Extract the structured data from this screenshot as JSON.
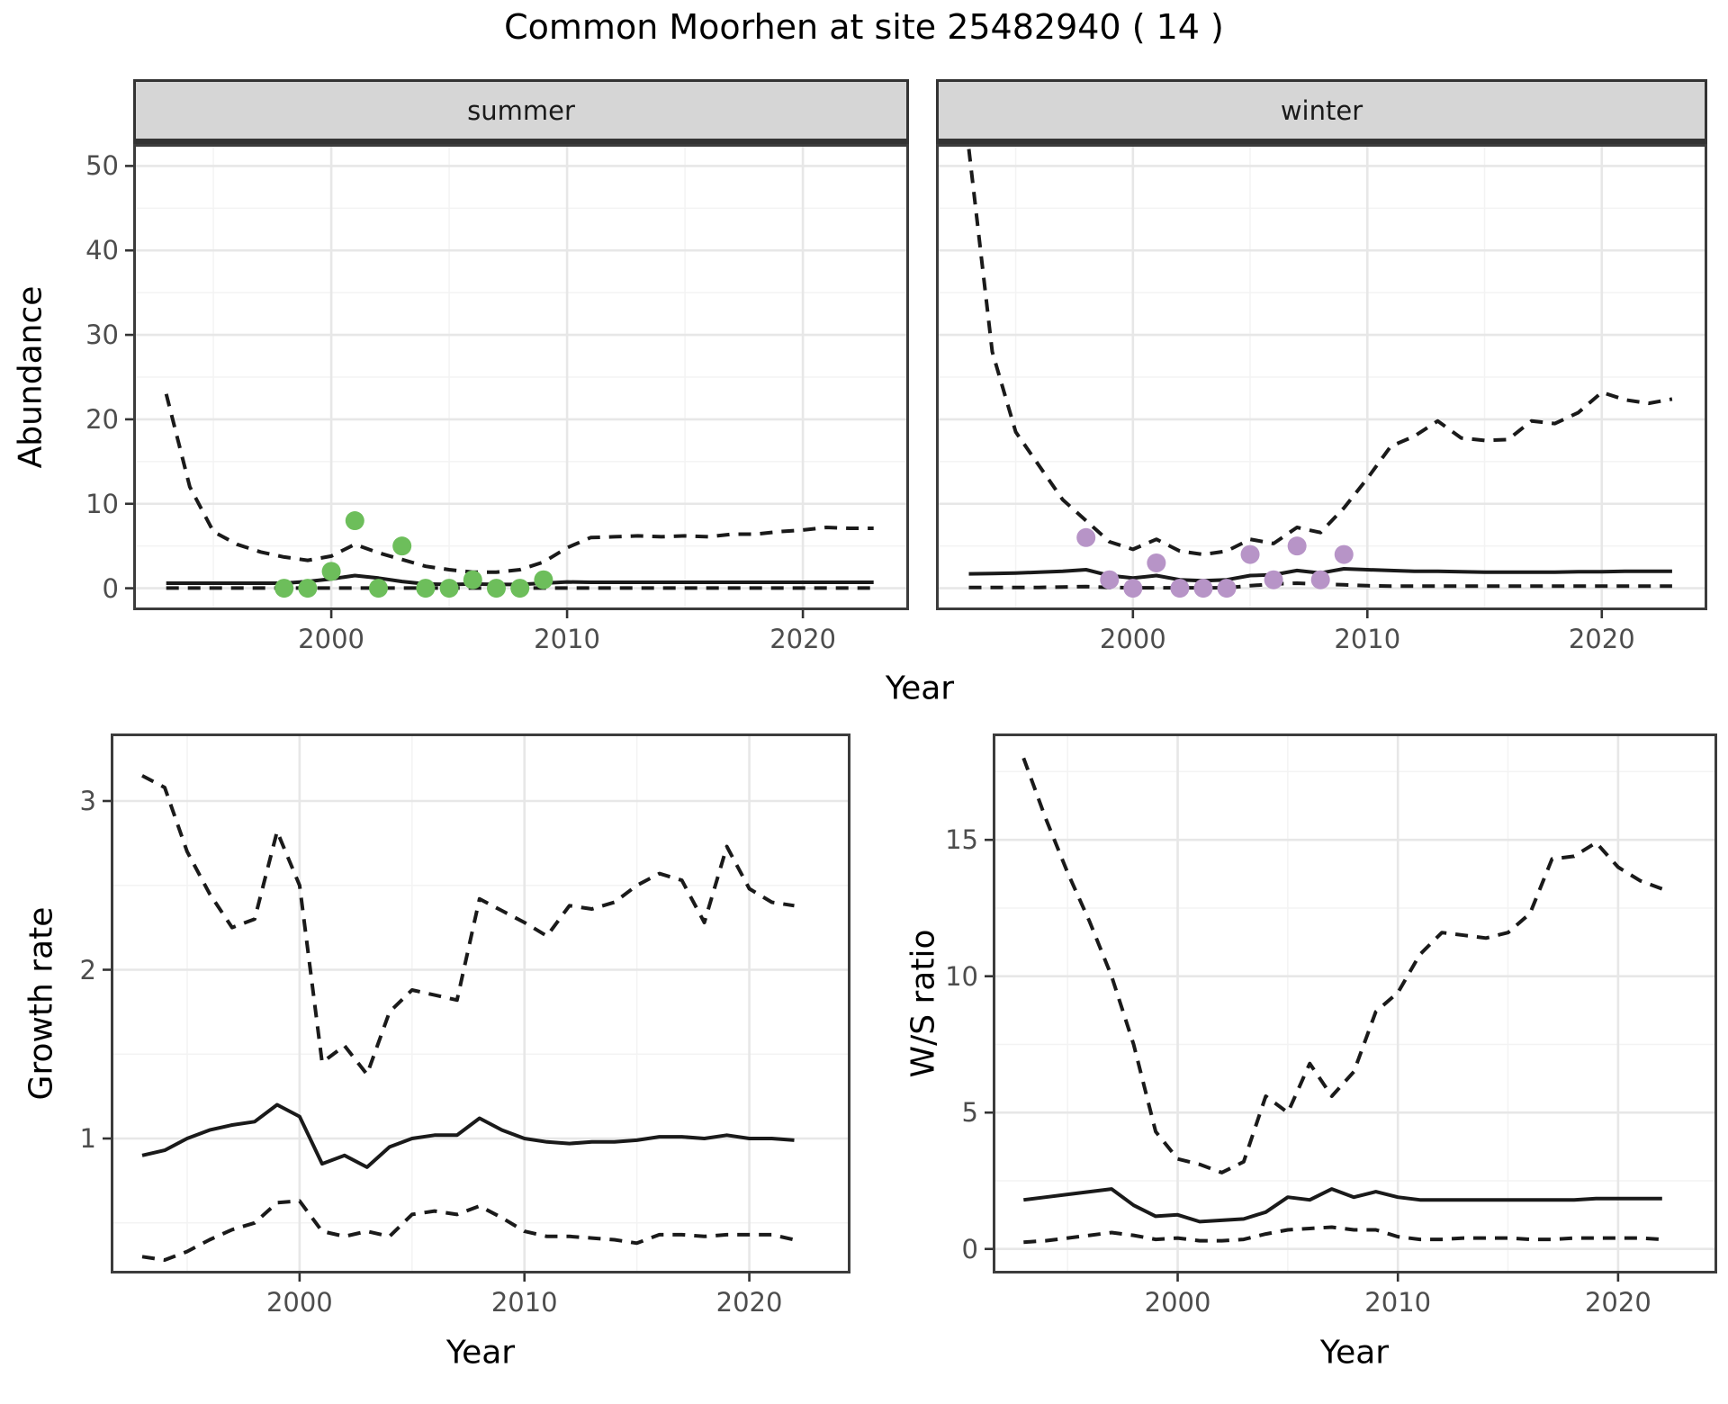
{
  "title": "Common Moorhen at site 25482940 ( 14 )",
  "line_color": "#1a1a1a",
  "chart_data": [
    {
      "id": "abundance-summer",
      "type": "line",
      "facet_label": "summer",
      "ylabel": "Abundance",
      "xlabel": "Year",
      "xlim": [
        1991.6,
        2024.5
      ],
      "ylim": [
        -2.6,
        52.6
      ],
      "x_major": [
        2000,
        2010,
        2020
      ],
      "x_minor": [
        1995,
        2005,
        2015
      ],
      "x_tick_labels": [
        "2000",
        "2010",
        "2020"
      ],
      "y_major": [
        0,
        10,
        20,
        30,
        40,
        50
      ],
      "y_minor": [
        5,
        15,
        25,
        35,
        45
      ],
      "y_tick_labels": [
        "0",
        "10",
        "20",
        "30",
        "40",
        "50"
      ],
      "grid": true,
      "legend": "none",
      "x": [
        1993,
        1994,
        1995,
        1996,
        1997,
        1998,
        1999,
        2000,
        2001,
        2002,
        2003,
        2004,
        2005,
        2006,
        2007,
        2008,
        2009,
        2010,
        2011,
        2012,
        2013,
        2014,
        2015,
        2016,
        2017,
        2018,
        2019,
        2020,
        2021,
        2022,
        2023
      ],
      "series": [
        {
          "name": "upper_ci",
          "style": "dashed",
          "values": [
            23,
            12,
            6.7,
            5.2,
            4.3,
            3.7,
            3.3,
            3.8,
            5.2,
            4.2,
            3.4,
            2.6,
            2.2,
            1.9,
            1.9,
            2.2,
            3.1,
            4.8,
            6.0,
            6.1,
            6.2,
            6.1,
            6.2,
            6.1,
            6.4,
            6.4,
            6.7,
            6.9,
            7.2,
            7.1,
            7.1
          ]
        },
        {
          "name": "median",
          "style": "solid",
          "values": [
            0.6,
            0.6,
            0.6,
            0.6,
            0.6,
            0.6,
            0.8,
            1.1,
            1.5,
            1.2,
            0.8,
            0.5,
            0.45,
            0.5,
            0.45,
            0.45,
            0.6,
            0.75,
            0.7,
            0.7,
            0.7,
            0.7,
            0.7,
            0.7,
            0.7,
            0.7,
            0.7,
            0.7,
            0.7,
            0.7,
            0.7
          ]
        },
        {
          "name": "lower_ci",
          "style": "dashed",
          "values": [
            0.02,
            0.02,
            0.02,
            0.02,
            0.02,
            0.02,
            0.02,
            0.02,
            0.02,
            0.02,
            0.02,
            0.02,
            0.02,
            0.02,
            0.02,
            0.02,
            0.02,
            0.02,
            0.02,
            0.02,
            0.02,
            0.02,
            0.02,
            0.02,
            0.02,
            0.02,
            0.02,
            0.02,
            0.02,
            0.02,
            0.02
          ]
        }
      ],
      "points": {
        "name": "summer-observations",
        "color": "#6dbe5b",
        "x": [
          1998,
          1999,
          2000,
          2001,
          2002,
          2003,
          2004,
          2005,
          2006,
          2007,
          2008,
          2009
        ],
        "y": [
          0,
          0,
          2,
          8,
          0,
          5,
          0,
          0,
          1,
          0,
          0,
          1
        ]
      }
    },
    {
      "id": "abundance-winter",
      "type": "line",
      "facet_label": "winter",
      "ylabel": "Abundance",
      "xlabel": "Year",
      "xlim": [
        1991.6,
        2024.5
      ],
      "ylim": [
        -2.6,
        52.6
      ],
      "x_major": [
        2000,
        2010,
        2020
      ],
      "x_minor": [
        1995,
        2005,
        2015
      ],
      "x_tick_labels": [
        "2000",
        "2010",
        "2020"
      ],
      "y_major": [
        0,
        10,
        20,
        30,
        40,
        50
      ],
      "y_minor": [
        5,
        15,
        25,
        35,
        45
      ],
      "y_tick_labels": [],
      "grid": true,
      "legend": "none",
      "x": [
        1993,
        1994,
        1995,
        1996,
        1997,
        1998,
        1999,
        2000,
        2001,
        2002,
        2003,
        2004,
        2005,
        2006,
        2007,
        2008,
        2009,
        2010,
        2011,
        2012,
        2013,
        2014,
        2015,
        2016,
        2017,
        2018,
        2019,
        2020,
        2021,
        2022,
        2023
      ],
      "series": [
        {
          "name": "upper_ci",
          "style": "dashed",
          "values": [
            52,
            28,
            18.5,
            14.5,
            10.5,
            8,
            5.5,
            4.6,
            5.8,
            4.4,
            4.0,
            4.4,
            5.8,
            5.3,
            7.2,
            6.6,
            9.5,
            13,
            16.8,
            18,
            19.8,
            17.8,
            17.5,
            17.6,
            19.8,
            19.5,
            20.8,
            23.2,
            22.3,
            21.9,
            22.4
          ]
        },
        {
          "name": "median",
          "style": "solid",
          "values": [
            1.7,
            1.75,
            1.8,
            1.9,
            2.0,
            2.2,
            1.5,
            1.2,
            1.5,
            1.0,
            0.9,
            1.0,
            1.5,
            1.6,
            2.1,
            1.8,
            2.3,
            2.2,
            2.1,
            2.0,
            2.0,
            1.95,
            1.9,
            1.9,
            1.9,
            1.9,
            1.95,
            1.95,
            2.0,
            2.0,
            2.0
          ]
        },
        {
          "name": "lower_ci",
          "style": "dashed",
          "values": [
            0.1,
            0.1,
            0.1,
            0.1,
            0.15,
            0.2,
            0.1,
            0.05,
            0.05,
            0.05,
            0.05,
            0.05,
            0.3,
            0.5,
            0.6,
            0.5,
            0.4,
            0.3,
            0.25,
            0.25,
            0.25,
            0.25,
            0.25,
            0.25,
            0.25,
            0.25,
            0.25,
            0.25,
            0.25,
            0.25,
            0.25
          ]
        }
      ],
      "points": {
        "name": "winter-observations",
        "color": "#b794c7",
        "x": [
          1998,
          1999,
          2000,
          2001,
          2002,
          2003,
          2004,
          2005,
          2006,
          2007,
          2008,
          2009
        ],
        "y": [
          6,
          1,
          0,
          3,
          0,
          0,
          0,
          4,
          1,
          5,
          1,
          4
        ]
      }
    },
    {
      "id": "growth-rate",
      "type": "line",
      "facet_label": "",
      "ylabel": "Growth rate",
      "xlabel": "Year",
      "xlim": [
        1991.6,
        2024.5
      ],
      "ylim": [
        0.2,
        3.4
      ],
      "x_major": [
        2000,
        2010,
        2020
      ],
      "x_minor": [
        1995,
        2005,
        2015
      ],
      "x_tick_labels": [
        "2000",
        "2010",
        "2020"
      ],
      "y_major": [
        1,
        2,
        3
      ],
      "y_minor": [
        0.5,
        1.5,
        2.5
      ],
      "y_tick_labels": [
        "1",
        "2",
        "3"
      ],
      "grid": true,
      "legend": "none",
      "x": [
        1993,
        1994,
        1995,
        1996,
        1997,
        1998,
        1999,
        2000,
        2001,
        2002,
        2003,
        2004,
        2005,
        2006,
        2007,
        2008,
        2009,
        2010,
        2011,
        2012,
        2013,
        2014,
        2015,
        2016,
        2017,
        2018,
        2019,
        2020,
        2021,
        2022
      ],
      "series": [
        {
          "name": "upper_ci",
          "style": "dashed",
          "values": [
            3.15,
            3.08,
            2.7,
            2.45,
            2.25,
            2.3,
            2.82,
            2.5,
            1.45,
            1.55,
            1.38,
            1.75,
            1.88,
            1.85,
            1.82,
            2.42,
            2.35,
            2.28,
            2.2,
            2.38,
            2.36,
            2.4,
            2.5,
            2.57,
            2.53,
            2.28,
            2.73,
            2.48,
            2.4,
            2.38
          ]
        },
        {
          "name": "median",
          "style": "solid",
          "values": [
            0.9,
            0.93,
            1.0,
            1.05,
            1.08,
            1.1,
            1.2,
            1.13,
            0.85,
            0.9,
            0.83,
            0.95,
            1.0,
            1.02,
            1.02,
            1.12,
            1.05,
            1.0,
            0.98,
            0.97,
            0.98,
            0.98,
            0.99,
            1.01,
            1.01,
            1.0,
            1.02,
            1.0,
            1.0,
            0.99
          ]
        },
        {
          "name": "lower_ci",
          "style": "dashed",
          "values": [
            0.3,
            0.28,
            0.33,
            0.4,
            0.46,
            0.5,
            0.62,
            0.63,
            0.45,
            0.42,
            0.45,
            0.42,
            0.55,
            0.57,
            0.55,
            0.6,
            0.53,
            0.45,
            0.42,
            0.42,
            0.41,
            0.4,
            0.38,
            0.43,
            0.43,
            0.42,
            0.43,
            0.43,
            0.43,
            0.4
          ]
        }
      ],
      "points": null
    },
    {
      "id": "ws-ratio",
      "type": "line",
      "facet_label": "",
      "ylabel": "W/S ratio",
      "xlabel": "Year",
      "xlim": [
        1991.6,
        2024.5
      ],
      "ylim": [
        -0.9,
        18.9
      ],
      "x_major": [
        2000,
        2010,
        2020
      ],
      "x_minor": [
        1995,
        2005,
        2015
      ],
      "x_tick_labels": [
        "2000",
        "2010",
        "2020"
      ],
      "y_major": [
        0,
        5,
        10,
        15
      ],
      "y_minor": [
        2.5,
        7.5,
        12.5,
        17.5
      ],
      "y_tick_labels": [
        "0",
        "5",
        "10",
        "15"
      ],
      "grid": true,
      "legend": "none",
      "x": [
        1993,
        1994,
        1995,
        1996,
        1997,
        1998,
        1999,
        2000,
        2001,
        2002,
        2003,
        2004,
        2005,
        2006,
        2007,
        2008,
        2009,
        2010,
        2011,
        2012,
        2013,
        2014,
        2015,
        2016,
        2017,
        2018,
        2019,
        2020,
        2021,
        2022
      ],
      "series": [
        {
          "name": "upper_ci",
          "style": "dashed",
          "values": [
            18,
            15.8,
            13.8,
            12,
            10,
            7.5,
            4.3,
            3.3,
            3.1,
            2.8,
            3.2,
            5.6,
            5.0,
            6.8,
            5.6,
            6.5,
            8.7,
            9.4,
            10.8,
            11.6,
            11.5,
            11.4,
            11.6,
            12.3,
            14.3,
            14.4,
            14.9,
            14.0,
            13.5,
            13.2
          ]
        },
        {
          "name": "median",
          "style": "solid",
          "values": [
            1.8,
            1.9,
            2.0,
            2.1,
            2.2,
            1.6,
            1.2,
            1.25,
            1.0,
            1.05,
            1.1,
            1.35,
            1.9,
            1.8,
            2.2,
            1.9,
            2.1,
            1.9,
            1.8,
            1.8,
            1.8,
            1.8,
            1.8,
            1.8,
            1.8,
            1.8,
            1.85,
            1.85,
            1.85,
            1.85
          ]
        },
        {
          "name": "lower_ci",
          "style": "dashed",
          "values": [
            0.25,
            0.3,
            0.4,
            0.5,
            0.6,
            0.5,
            0.35,
            0.4,
            0.3,
            0.3,
            0.35,
            0.55,
            0.7,
            0.75,
            0.8,
            0.7,
            0.7,
            0.45,
            0.35,
            0.35,
            0.4,
            0.4,
            0.4,
            0.35,
            0.35,
            0.4,
            0.4,
            0.4,
            0.4,
            0.35
          ]
        }
      ],
      "points": null
    }
  ]
}
